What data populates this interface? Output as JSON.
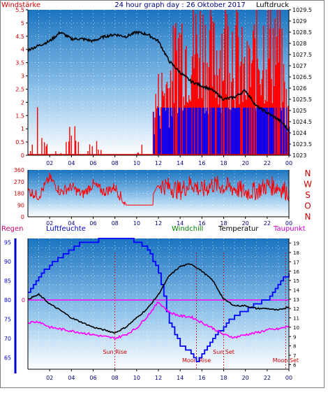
{
  "panel1": {
    "title": "24 hour graph day : 26 Oktober 2017",
    "left_label": "Windstärke",
    "right_label": "Luftdruck",
    "left_ticks": [
      "0",
      "0.5",
      "1",
      "1.5",
      "2",
      "2.5",
      "3",
      "3.5",
      "4",
      "4.5",
      "5",
      "5.5"
    ],
    "right_ticks": [
      "1023",
      "1023.5",
      "1024",
      "1024.5",
      "1025",
      "1025.5",
      "1026",
      "1026.5",
      "1027",
      "1027.5",
      "1028",
      "1028.5",
      "1029",
      "1029.5"
    ]
  },
  "panel2": {
    "left_ticks": [
      "0",
      "90",
      "180",
      "270",
      "360"
    ],
    "compass": [
      "N",
      "W",
      "S",
      "O",
      "N"
    ]
  },
  "panel3": {
    "labels": {
      "regen": "Regen",
      "luftfeuchte": "Luftfeuchte",
      "windchill": "Windchill",
      "temperatur": "Temperatur",
      "taupunkt": "Taupunkt"
    },
    "rain_value": "0",
    "left_ticks": [
      "65",
      "70",
      "75",
      "80",
      "85",
      "90",
      "95"
    ],
    "right_ticks": [
      "6",
      "7",
      "8",
      "9",
      "10",
      "11",
      "12",
      "13",
      "14",
      "15",
      "16",
      "17",
      "18",
      "19"
    ],
    "events": [
      {
        "label": "Sun Rise",
        "hour": 8
      },
      {
        "label": "Moon Rise",
        "hour": 15.5
      },
      {
        "label": "Sun Set",
        "hour": 18
      },
      {
        "label": "Moon Set",
        "hour": 23.7
      }
    ]
  },
  "x_ticks": [
    "02",
    "04",
    "06",
    "08",
    "10",
    "12",
    "14",
    "16",
    "18",
    "20",
    "22",
    "00"
  ],
  "colors": {
    "wind_gust": "#ff0000",
    "wind_avg": "#0000ff",
    "pressure": "#000000",
    "direction": "#ff0000",
    "humidity": "#0000ff",
    "temperature": "#000000",
    "dewpoint": "#ff00ff",
    "rain_line": "#ff00ff",
    "windchill_label": "#008000",
    "event": "#cc0000"
  },
  "chart_data": [
    {
      "type": "line",
      "title": "24 hour graph day : 26 Oktober 2017",
      "xlabel": "",
      "x_unit": "hour",
      "xlim": [
        0,
        24
      ],
      "grid": true,
      "series": [
        {
          "name": "Luftdruck",
          "axis": "right",
          "ylim": [
            1023,
            1029.5
          ],
          "x": [
            0,
            1,
            2,
            3,
            4,
            5,
            6,
            7,
            8,
            9,
            10,
            11,
            12,
            13,
            14,
            15,
            16,
            17,
            18,
            19,
            20,
            21,
            22,
            23,
            23.5,
            24
          ],
          "values": [
            1027.7,
            1027.9,
            1028.1,
            1028.5,
            1028.2,
            1028.2,
            1028.1,
            1028.3,
            1028.4,
            1028.3,
            1028.5,
            1028.4,
            1028.1,
            1027.2,
            1026.7,
            1026.3,
            1026.1,
            1025.9,
            1025.5,
            1025.6,
            1025.9,
            1025.2,
            1024.9,
            1024.6,
            1024.4,
            1024.1
          ]
        },
        {
          "name": "Windstärke",
          "axis": "left",
          "ylim": [
            0,
            5.5
          ],
          "x": [
            0,
            1,
            2,
            3,
            4,
            5,
            6,
            7,
            8,
            9,
            10,
            11,
            12,
            13,
            14,
            15,
            16,
            17,
            18,
            19,
            20,
            21,
            22,
            23,
            24
          ],
          "values": [
            0,
            1.8,
            0.5,
            0,
            1.8,
            0,
            1,
            0,
            0,
            0,
            0,
            1,
            2.8,
            3.5,
            5.5,
            5.2,
            5.5,
            4.5,
            5.5,
            5.5,
            3.5,
            5,
            5.5,
            5.5,
            1.5
          ]
        }
      ]
    },
    {
      "type": "line",
      "xlabel": "",
      "x_unit": "hour",
      "xlim": [
        0,
        24
      ],
      "ylim": [
        0,
        360
      ],
      "series": [
        {
          "name": "Windrichtung",
          "x": [
            0,
            1,
            2,
            3,
            4,
            5,
            6,
            7,
            8,
            9,
            10,
            11,
            12,
            13,
            14,
            15,
            16,
            17,
            18,
            19,
            20,
            21,
            22,
            23,
            24
          ],
          "values": [
            200,
            160,
            300,
            190,
            230,
            170,
            250,
            190,
            230,
            90,
            90,
            90,
            250,
            230,
            200,
            260,
            200,
            250,
            230,
            220,
            190,
            200,
            240,
            230,
            190
          ]
        }
      ]
    },
    {
      "type": "line",
      "xlabel": "",
      "x_unit": "hour",
      "xlim": [
        0,
        24
      ],
      "grid": true,
      "series": [
        {
          "name": "Luftfeuchte",
          "axis": "left",
          "ylim": [
            62,
            96
          ],
          "x": [
            0,
            1,
            2,
            3,
            4,
            5,
            6,
            7,
            8,
            9,
            10,
            11,
            12,
            13,
            14,
            15,
            15.5,
            16,
            17,
            18,
            19,
            20,
            21,
            22,
            23,
            24
          ],
          "values": [
            82,
            86,
            89,
            91,
            93,
            95,
            95,
            96,
            96,
            96,
            95,
            93,
            87,
            74,
            68,
            66,
            64,
            66,
            70,
            73,
            76,
            77,
            79,
            80,
            84,
            87
          ]
        },
        {
          "name": "Temperatur",
          "axis": "right",
          "ylim": [
            5.5,
            19.5
          ],
          "x": [
            0,
            1,
            2,
            3,
            4,
            5,
            6,
            7,
            8,
            9,
            10,
            11,
            12,
            13,
            14,
            15,
            16,
            17,
            18,
            19,
            20,
            21,
            22,
            23,
            24
          ],
          "values": [
            13,
            13.5,
            12.5,
            11.8,
            11,
            10.5,
            10,
            9.7,
            9.4,
            10,
            11,
            12,
            13.5,
            15.5,
            16.5,
            16.8,
            16,
            15,
            13,
            12.3,
            12.3,
            12,
            12,
            11.8,
            12.2
          ]
        },
        {
          "name": "Taupunkt",
          "axis": "right",
          "ylim": [
            5.5,
            19.5
          ],
          "x": [
            0,
            1,
            2,
            3,
            4,
            5,
            6,
            7,
            8,
            9,
            10,
            11,
            12,
            13,
            14,
            15,
            16,
            17,
            18,
            19,
            20,
            21,
            22,
            23,
            24
          ],
          "values": [
            10.5,
            10.6,
            10,
            9.8,
            9.6,
            9.4,
            9.2,
            9,
            8.8,
            9.2,
            9.9,
            11.2,
            12.7,
            11.6,
            11.2,
            11.1,
            10.5,
            9.9,
            9.2,
            8.9,
            9.2,
            9.4,
            9.7,
            9.8,
            10.1
          ]
        },
        {
          "name": "Regen",
          "axis": "left",
          "values": [
            0
          ]
        }
      ]
    }
  ]
}
